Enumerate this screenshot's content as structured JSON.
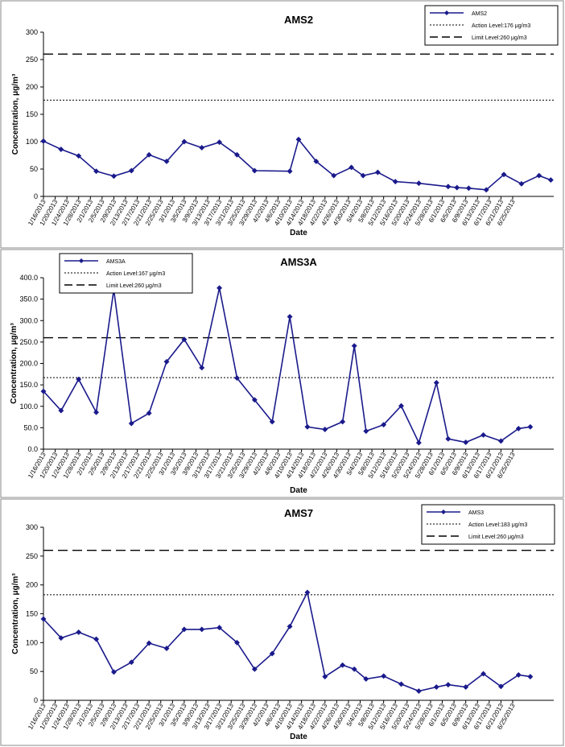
{
  "chart_data": [
    {
      "type": "line",
      "title": "AMS2",
      "xlabel": "Date",
      "ylabel": "Concentration, μg/m³",
      "ylim": [
        0,
        300
      ],
      "yticks": [
        "0",
        "50",
        "100",
        "150",
        "200",
        "250",
        "300"
      ],
      "grid": false,
      "legend_position": "top-right",
      "x": [
        "1/16/2013",
        "1/20/2013",
        "1/24/2013",
        "1/28/2013",
        "2/1/2013",
        "2/5/2013",
        "2/9/2013",
        "2/13/2013",
        "2/17/2013",
        "2/21/2013",
        "2/25/2013",
        "3/1/2013",
        "3/5/2013",
        "3/9/2013",
        "3/13/2013",
        "3/17/2013",
        "3/21/2013",
        "3/25/2013",
        "3/29/2013",
        "4/2/2013",
        "4/6/2013",
        "4/10/2013",
        "4/14/2013",
        "4/18/2013",
        "4/22/2013",
        "4/26/2013",
        "4/30/2013",
        "5/4/2013",
        "5/8/2013",
        "5/12/2013",
        "5/16/2013",
        "5/20/2013",
        "5/24/2013",
        "5/28/2013",
        "6/1/2013",
        "6/5/2013",
        "6/9/2013",
        "6/13/2013",
        "6/17/2013",
        "6/21/2013",
        "6/25/2013"
      ],
      "series": [
        {
          "name": "AMS2",
          "color": "#1a1a8c",
          "style": "line-diamond",
          "points": [
            [
              "1/16/2013",
              101
            ],
            [
              "1/22/2013",
              86
            ],
            [
              "1/28/2013",
              74
            ],
            [
              "2/3/2013",
              46
            ],
            [
              "2/9/2013",
              37
            ],
            [
              "2/15/2013",
              47
            ],
            [
              "2/21/2013",
              76
            ],
            [
              "2/27/2013",
              64
            ],
            [
              "3/5/2013",
              100
            ],
            [
              "3/11/2013",
              89
            ],
            [
              "3/17/2013",
              99
            ],
            [
              "3/23/2013",
              76
            ],
            [
              "3/29/2013",
              47
            ],
            [
              "4/10/2013",
              46
            ],
            [
              "4/13/2013",
              104
            ],
            [
              "4/19/2013",
              64
            ],
            [
              "4/25/2013",
              38
            ],
            [
              "5/1/2013",
              53
            ],
            [
              "5/5/2013",
              38
            ],
            [
              "5/10/2013",
              44
            ],
            [
              "5/16/2013",
              27
            ],
            [
              "5/24/2013",
              24
            ],
            [
              "6/3/2013",
              18
            ],
            [
              "6/6/2013",
              16
            ],
            [
              "6/10/2013",
              15
            ],
            [
              "6/16/2013",
              12
            ],
            [
              "6/22/2013",
              40
            ],
            [
              "6/28/2013",
              23
            ],
            [
              "7/4/2013",
              38
            ],
            [
              "7/8/2013",
              30
            ]
          ]
        }
      ],
      "reference_lines": [
        {
          "name": "Action Level:176 μg/m3",
          "value": 176,
          "style": "dotted"
        },
        {
          "name": "Limit Level:260 μg/m3",
          "value": 260,
          "style": "dashed"
        }
      ]
    },
    {
      "type": "line",
      "title": "AMS3A",
      "xlabel": "Date",
      "ylabel": "Concentration, μg/m³",
      "ylim": [
        0,
        400
      ],
      "yticks": [
        "0.0",
        "50.0",
        "100.0",
        "150.0",
        "200.0",
        "250.0",
        "300.0",
        "350.0",
        "400.0"
      ],
      "grid": false,
      "legend_position": "top-left",
      "x": [
        "1/16/2013",
        "1/20/2013",
        "1/24/2013",
        "1/28/2013",
        "2/1/2013",
        "2/5/2013",
        "2/9/2013",
        "2/13/2013",
        "2/17/2013",
        "2/21/2013",
        "2/25/2013",
        "3/1/2013",
        "3/5/2013",
        "3/9/2013",
        "3/13/2013",
        "3/17/2013",
        "3/21/2013",
        "3/25/2013",
        "3/29/2013",
        "4/2/2013",
        "4/6/2013",
        "4/10/2013",
        "4/14/2013",
        "4/18/2013",
        "4/22/2013",
        "4/26/2013",
        "4/30/2013",
        "5/4/2013",
        "5/8/2013",
        "5/12/2013",
        "5/16/2013",
        "5/20/2013",
        "5/24/2013",
        "5/28/2013",
        "6/1/2013",
        "6/5/2013",
        "6/9/2013",
        "6/13/2013",
        "6/17/2013",
        "6/21/2013",
        "6/25/2013"
      ],
      "series": [
        {
          "name": "AMS3A",
          "color": "#1a1a8c",
          "style": "line-diamond",
          "points": [
            [
              "1/16/2013",
              135
            ],
            [
              "1/22/2013",
              90
            ],
            [
              "1/28/2013",
              163
            ],
            [
              "2/3/2013",
              86
            ],
            [
              "2/9/2013",
              372
            ],
            [
              "2/15/2013",
              60
            ],
            [
              "2/21/2013",
              84
            ],
            [
              "2/27/2013",
              204
            ],
            [
              "3/5/2013",
              256
            ],
            [
              "3/11/2013",
              190
            ],
            [
              "3/17/2013",
              376
            ],
            [
              "3/23/2013",
              166
            ],
            [
              "3/29/2013",
              115
            ],
            [
              "4/4/2013",
              64
            ],
            [
              "4/10/2013",
              309
            ],
            [
              "4/16/2013",
              52
            ],
            [
              "4/22/2013",
              46
            ],
            [
              "4/28/2013",
              64
            ],
            [
              "5/2/2013",
              241
            ],
            [
              "5/6/2013",
              42
            ],
            [
              "5/12/2013",
              57
            ],
            [
              "5/18/2013",
              101
            ],
            [
              "5/24/2013",
              15
            ],
            [
              "5/30/2013",
              155
            ],
            [
              "6/3/2013",
              24
            ],
            [
              "6/9/2013",
              16
            ],
            [
              "6/15/2013",
              33
            ],
            [
              "6/21/2013",
              19
            ],
            [
              "6/27/2013",
              48
            ],
            [
              "7/1/2013",
              52
            ]
          ]
        }
      ],
      "reference_lines": [
        {
          "name": "Action Level:167 μg/m3",
          "value": 167,
          "style": "dotted"
        },
        {
          "name": "Limit Level:260 μg/m3",
          "value": 260,
          "style": "dashed"
        }
      ]
    },
    {
      "type": "line",
      "title": "AMS7",
      "xlabel": "Date",
      "ylabel": "Concentration, μg/m³",
      "ylim": [
        0,
        300
      ],
      "yticks": [
        "0",
        "50",
        "100",
        "150",
        "200",
        "250",
        "300"
      ],
      "grid": false,
      "legend_position": "top-right",
      "x": [
        "1/16/2013",
        "1/20/2013",
        "1/24/2013",
        "1/28/2013",
        "2/1/2013",
        "2/5/2013",
        "2/9/2013",
        "2/13/2013",
        "2/17/2013",
        "2/21/2013",
        "2/25/2013",
        "3/1/2013",
        "3/5/2013",
        "3/9/2013",
        "3/13/2013",
        "3/17/2013",
        "3/21/2013",
        "3/25/2013",
        "3/29/2013",
        "4/2/2013",
        "4/6/2013",
        "4/10/2013",
        "4/14/2013",
        "4/18/2013",
        "4/22/2013",
        "4/26/2013",
        "4/30/2013",
        "5/4/2013",
        "5/8/2013",
        "5/12/2013",
        "5/16/2013",
        "5/20/2013",
        "5/24/2013",
        "5/28/2013",
        "6/1/2013",
        "6/5/2013",
        "6/9/2013",
        "6/13/2013",
        "6/17/2013",
        "6/21/2013",
        "6/25/2013"
      ],
      "series": [
        {
          "name": "AMS3",
          "color": "#1a1a8c",
          "style": "line-diamond",
          "points": [
            [
              "1/16/2013",
              141
            ],
            [
              "1/22/2013",
              108
            ],
            [
              "1/28/2013",
              118
            ],
            [
              "2/3/2013",
              106
            ],
            [
              "2/9/2013",
              49
            ],
            [
              "2/15/2013",
              66
            ],
            [
              "2/21/2013",
              99
            ],
            [
              "2/27/2013",
              90
            ],
            [
              "3/5/2013",
              123
            ],
            [
              "3/11/2013",
              123
            ],
            [
              "3/17/2013",
              126
            ],
            [
              "3/23/2013",
              100
            ],
            [
              "3/29/2013",
              54
            ],
            [
              "4/4/2013",
              81
            ],
            [
              "4/10/2013",
              128
            ],
            [
              "4/16/2013",
              187
            ],
            [
              "4/22/2013",
              41
            ],
            [
              "4/28/2013",
              61
            ],
            [
              "5/2/2013",
              54
            ],
            [
              "5/6/2013",
              37
            ],
            [
              "5/12/2013",
              42
            ],
            [
              "5/18/2013",
              28
            ],
            [
              "5/24/2013",
              16
            ],
            [
              "5/30/2013",
              23
            ],
            [
              "6/3/2013",
              27
            ],
            [
              "6/9/2013",
              23
            ],
            [
              "6/15/2013",
              46
            ],
            [
              "6/21/2013",
              24
            ],
            [
              "6/27/2013",
              44
            ],
            [
              "7/1/2013",
              41
            ]
          ]
        }
      ],
      "reference_lines": [
        {
          "name": "Action Level:183 μg/m3",
          "value": 183,
          "style": "dotted"
        },
        {
          "name": "Limit Level:260 μg/m3",
          "value": 260,
          "style": "dashed"
        }
      ]
    }
  ]
}
